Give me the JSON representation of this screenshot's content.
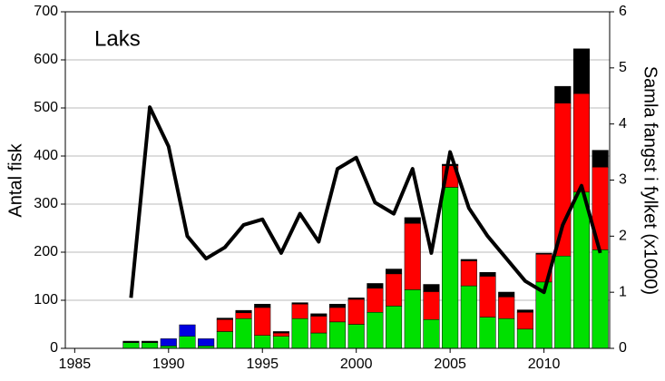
{
  "chart_data": {
    "type": "bar",
    "stacked": true,
    "annotation": "Laks",
    "ylabel": "Antal fisk",
    "y2label": "Samla fangst i fylket (x1000)",
    "x": [
      1988,
      1989,
      1990,
      1991,
      1992,
      1993,
      1994,
      1995,
      1996,
      1997,
      1998,
      1999,
      2000,
      2001,
      2002,
      2003,
      2004,
      2005,
      2006,
      2007,
      2008,
      2009,
      2010,
      2011,
      2012,
      2013
    ],
    "series": [
      {
        "color": "#00e000",
        "values": [
          12,
          12,
          5,
          25,
          5,
          35,
          62,
          27,
          25,
          62,
          32,
          55,
          50,
          75,
          88,
          122,
          60,
          335,
          130,
          65,
          62,
          40,
          138,
          192,
          325,
          205
        ]
      },
      {
        "color": "#0000e0",
        "values": [
          0,
          0,
          15,
          24,
          15,
          0,
          0,
          0,
          0,
          0,
          0,
          0,
          0,
          0,
          0,
          0,
          0,
          0,
          0,
          0,
          0,
          0,
          0,
          0,
          0,
          0
        ]
      },
      {
        "color": "#ff0000",
        "values": [
          0,
          0,
          0,
          0,
          0,
          25,
          12,
          58,
          7,
          30,
          35,
          30,
          52,
          50,
          67,
          138,
          58,
          45,
          52,
          85,
          45,
          35,
          58,
          318,
          205,
          172
        ]
      },
      {
        "color": "#000000",
        "values": [
          3,
          3,
          0,
          0,
          0,
          3,
          5,
          7,
          3,
          3,
          5,
          7,
          3,
          10,
          10,
          12,
          15,
          3,
          3,
          8,
          10,
          5,
          2,
          35,
          93,
          35
        ]
      },
      {
        "type": "line",
        "axis": "y2",
        "color": "#000000",
        "values": [
          0.9,
          4.3,
          3.6,
          2.0,
          1.6,
          1.8,
          2.2,
          2.3,
          1.7,
          2.4,
          1.9,
          3.2,
          3.4,
          2.6,
          2.4,
          3.2,
          1.7,
          3.5,
          2.5,
          2.0,
          1.6,
          1.2,
          1.0,
          2.2,
          2.9,
          1.7
        ]
      }
    ],
    "xlim": [
      1984.5,
      2013.5
    ],
    "xticks": [
      1985,
      1990,
      1995,
      2000,
      2005,
      2010
    ],
    "ylim": [
      0,
      700
    ],
    "yticks": [
      0,
      100,
      200,
      300,
      400,
      500,
      600,
      700
    ],
    "y2lim": [
      0,
      6
    ],
    "y2ticks": [
      0,
      1,
      2,
      3,
      4,
      5,
      6
    ],
    "grid": true
  }
}
